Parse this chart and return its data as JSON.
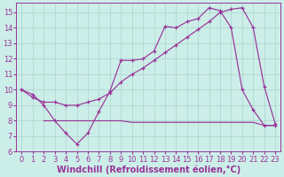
{
  "xlabel": "Windchill (Refroidissement éolien,°C)",
  "background_color": "#cceee8",
  "grid_color": "#aad4cc",
  "line_color": "#993399",
  "xlim": [
    -0.5,
    23.5
  ],
  "ylim": [
    6.0,
    15.6
  ],
  "xticks": [
    0,
    1,
    2,
    3,
    4,
    5,
    6,
    7,
    8,
    9,
    10,
    11,
    12,
    13,
    14,
    15,
    16,
    17,
    18,
    19,
    20,
    21,
    22,
    23
  ],
  "yticks": [
    6,
    7,
    8,
    9,
    10,
    11,
    12,
    13,
    14,
    15
  ],
  "series1_x": [
    0,
    1,
    2,
    3,
    4,
    5,
    6,
    7,
    8,
    9,
    10,
    11,
    12,
    13,
    14,
    15,
    16,
    17,
    18,
    19,
    20,
    21,
    22,
    23
  ],
  "series1_y": [
    10.0,
    9.7,
    9.0,
    8.0,
    7.2,
    6.5,
    7.2,
    8.6,
    9.9,
    11.9,
    11.9,
    12.0,
    12.5,
    14.1,
    14.0,
    14.4,
    14.6,
    15.3,
    15.1,
    14.0,
    10.0,
    8.7,
    7.7,
    7.7
  ],
  "series2_x": [
    0,
    1,
    2,
    3,
    4,
    5,
    6,
    7,
    8,
    9,
    10,
    11,
    12,
    13,
    14,
    15,
    16,
    17,
    18,
    19,
    20,
    21,
    22,
    23
  ],
  "series2_y": [
    10.0,
    9.5,
    9.2,
    9.2,
    9.0,
    9.0,
    9.2,
    9.4,
    9.8,
    10.5,
    11.0,
    11.4,
    11.9,
    12.4,
    12.9,
    13.4,
    13.9,
    14.4,
    15.0,
    15.2,
    15.3,
    14.0,
    10.2,
    7.8
  ],
  "series3_x": [
    2,
    3,
    4,
    5,
    6,
    7,
    8,
    9,
    10,
    11,
    12,
    13,
    14,
    15,
    16,
    17,
    18,
    19,
    20,
    21,
    22,
    23
  ],
  "series3_y": [
    8.0,
    8.0,
    8.0,
    8.0,
    8.0,
    8.0,
    8.0,
    8.0,
    7.9,
    7.9,
    7.9,
    7.9,
    7.9,
    7.9,
    7.9,
    7.9,
    7.9,
    7.9,
    7.9,
    7.9,
    7.7,
    7.7
  ],
  "xlabel_fontsize": 7,
  "tick_fontsize": 6,
  "fig_width": 3.2,
  "fig_height": 2.0,
  "dpi": 100
}
